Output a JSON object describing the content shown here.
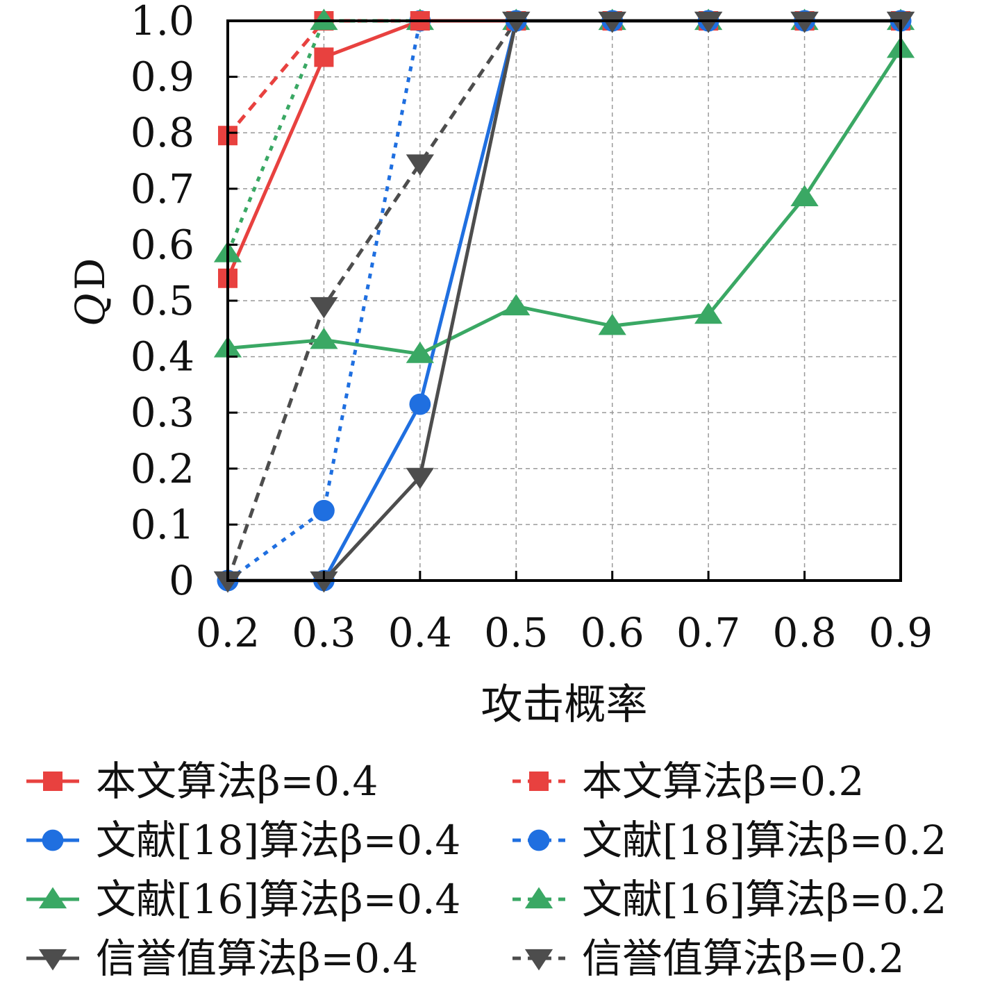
{
  "chart_data": {
    "type": "line",
    "title": "",
    "xlabel": "攻击概率",
    "ylabel": "Q",
    "ylabel_sub": "D",
    "x": [
      0.2,
      0.3,
      0.4,
      0.5,
      0.6,
      0.7,
      0.8,
      0.9
    ],
    "xlim": [
      0.2,
      0.9
    ],
    "ylim": [
      0,
      1.0
    ],
    "x_ticks": [
      "0.2",
      "0.3",
      "0.4",
      "0.5",
      "0.6",
      "0.7",
      "0.8",
      "0.9"
    ],
    "y_ticks": [
      "0",
      "0.1",
      "0.2",
      "0.3",
      "0.4",
      "0.5",
      "0.6",
      "0.7",
      "0.8",
      "0.9",
      "1.0"
    ],
    "grid": true,
    "legend_position": "bottom",
    "series": [
      {
        "name": "本文算法β=0.4",
        "color": "#e8413f",
        "marker": "square",
        "style": "solid",
        "values": [
          0.54,
          0.935,
          1.0,
          1.0,
          1.0,
          1.0,
          1.0,
          1.0
        ]
      },
      {
        "name": "本文算法β=0.2",
        "color": "#e8413f",
        "marker": "square",
        "style": "dashed",
        "values": [
          0.795,
          1.0,
          1.0,
          1.0,
          1.0,
          1.0,
          1.0,
          1.0
        ]
      },
      {
        "name": "文献[18]算法β=0.4",
        "color": "#1f6fe0",
        "marker": "circle",
        "style": "solid",
        "values": [
          0.0,
          0.0,
          0.315,
          1.0,
          1.0,
          1.0,
          1.0,
          1.0
        ]
      },
      {
        "name": "文献[18]算法β=0.2",
        "color": "#1f6fe0",
        "marker": "circle",
        "style": "dotted",
        "values": [
          0.0,
          0.125,
          1.0,
          1.0,
          1.0,
          1.0,
          1.0,
          1.0
        ]
      },
      {
        "name": "文献[16]算法β=0.4",
        "color": "#3aa864",
        "marker": "triangle-up",
        "style": "solid",
        "values": [
          0.415,
          0.43,
          0.405,
          0.49,
          0.455,
          0.475,
          0.685,
          0.95
        ]
      },
      {
        "name": "文献[16]算法β=0.2",
        "color": "#3aa864",
        "marker": "triangle-up",
        "style": "dotted",
        "values": [
          0.585,
          1.0,
          1.0,
          1.0,
          1.0,
          1.0,
          1.0,
          1.0
        ]
      },
      {
        "name": "信誉值算法β=0.4",
        "color": "#4d4d4d",
        "marker": "triangle-down",
        "style": "solid",
        "values": [
          0.0,
          0.0,
          0.185,
          1.0,
          1.0,
          1.0,
          1.0,
          1.0
        ]
      },
      {
        "name": "信誉值算法β=0.2",
        "color": "#4d4d4d",
        "marker": "triangle-down",
        "style": "dashed",
        "values": [
          0.0,
          0.49,
          0.745,
          1.0,
          1.0,
          1.0,
          1.0,
          1.0
        ]
      }
    ]
  }
}
